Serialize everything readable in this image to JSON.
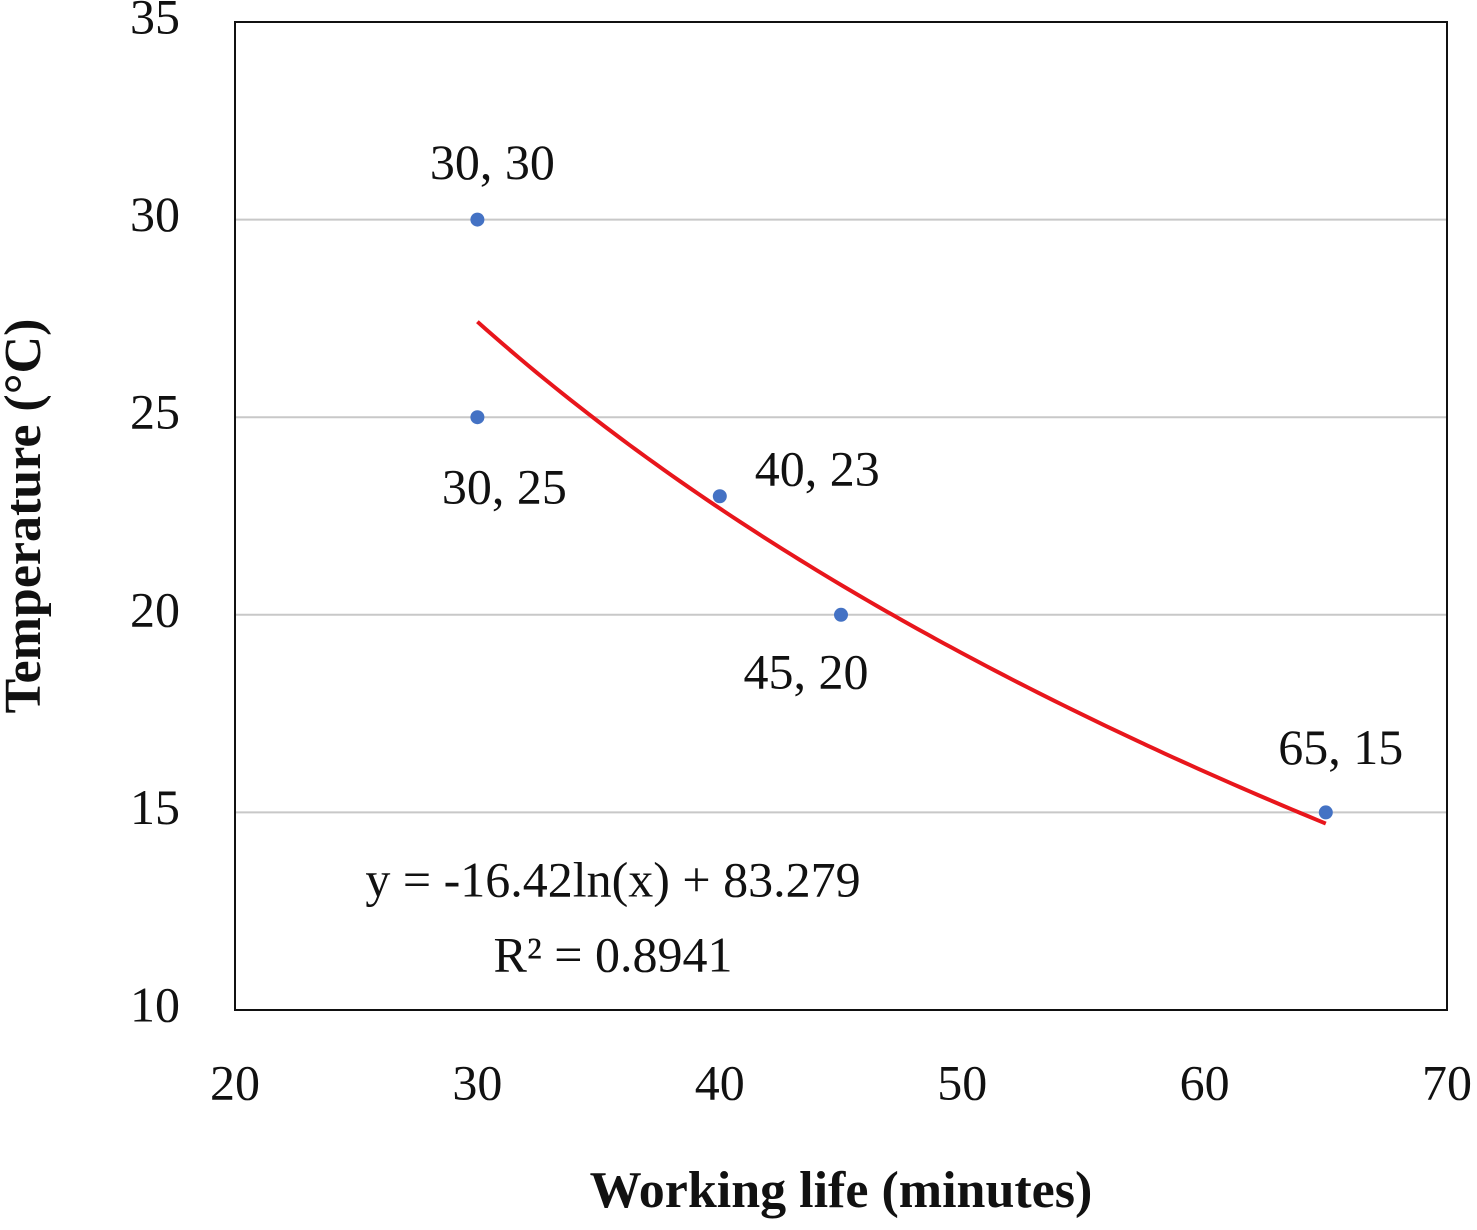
{
  "chart_data": {
    "type": "scatter",
    "x_label": "Working life (minutes)",
    "y_label": "Temperature (°C)",
    "x": [
      30,
      30,
      40,
      45,
      65
    ],
    "series": [
      {
        "color": "#4472c4",
        "values": [
          30,
          25,
          23,
          20,
          15
        ],
        "value_labels": [
          "30, 30",
          "30, 25",
          "40, 23",
          "45, 20",
          "65, 15"
        ]
      }
    ],
    "xlim": [
      20,
      70
    ],
    "xticks": [
      20,
      30,
      40,
      50,
      60,
      70
    ],
    "ylim": [
      10,
      35
    ],
    "yticks": [
      10,
      15,
      20,
      25,
      30,
      35
    ],
    "grid": true,
    "trendline": {
      "type": "log",
      "color": "#e8161c",
      "equation": "y = -16.42ln(x) + 83.279",
      "r_squared": "R² = 0.8941"
    }
  }
}
